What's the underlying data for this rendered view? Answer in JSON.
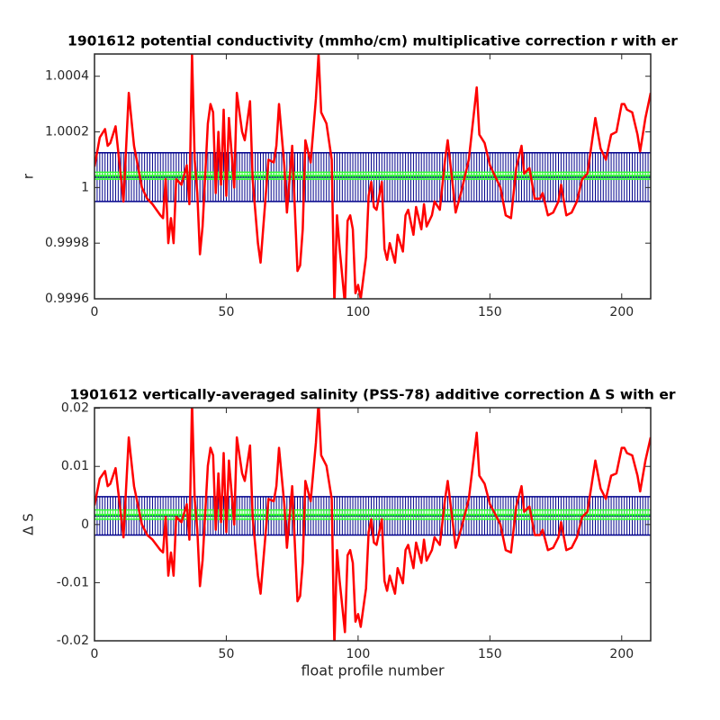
{
  "chart_data": [
    {
      "type": "line",
      "title": "1901612 potential conductivity (mmho/cm) multiplicative correction r with er",
      "ylabel": "r",
      "x": [
        0,
        2,
        4,
        5,
        6,
        8,
        9,
        11,
        13,
        15,
        17,
        18,
        20,
        22,
        25,
        26,
        27,
        28,
        29,
        30,
        31,
        33,
        35,
        36,
        37,
        38,
        39,
        40,
        41,
        43,
        44,
        45,
        46,
        47,
        48,
        49,
        50,
        51,
        53,
        54,
        56,
        57,
        59,
        60,
        62,
        63,
        66,
        68,
        69,
        70,
        72,
        73,
        74,
        75,
        77,
        78,
        79,
        80,
        82,
        84,
        85,
        86,
        88,
        90,
        91,
        92,
        93,
        95,
        96,
        97,
        98,
        99,
        100,
        101,
        103,
        104,
        105,
        106,
        107,
        109,
        110,
        111,
        112,
        114,
        115,
        117,
        118,
        119,
        121,
        122,
        124,
        125,
        126,
        128,
        129,
        131,
        133,
        134,
        136,
        137,
        139,
        141,
        142,
        145,
        146,
        148,
        150,
        152,
        154,
        156,
        158,
        160,
        162,
        163,
        165,
        167,
        169,
        170,
        172,
        174,
        176,
        177,
        179,
        181,
        183,
        185,
        187,
        190,
        192,
        194,
        196,
        198,
        200,
        201,
        202,
        204,
        206,
        207,
        209,
        211
      ],
      "series": [
        {
          "color": "#ff0000",
          "values": [
            1.000075,
            1.00018,
            1.00021,
            1.00015,
            1.00016,
            1.00022,
            1.00013,
            0.99995,
            1.00034,
            1.00015,
            1.00005,
            1,
            0.99996,
            0.99994,
            0.9999,
            0.99989,
            1.00003,
            0.9998,
            0.99989,
            0.9998,
            1.00003,
            1.00001,
            1.00008,
            0.99994,
            1.00048,
            1.0001,
            0.99998,
            0.99976,
            0.99986,
            1.00023,
            1.0003,
            1.00027,
            0.99998,
            1.0002,
            1.00001,
            1.00028,
            0.99997,
            1.00025,
            1,
            1.00034,
            1.0002,
            1.00017,
            1.00031,
            1.00003,
            0.9998,
            0.99973,
            1.0001,
            1.00009,
            1.00015,
            1.0003,
            1.00008,
            0.99991,
            1.00003,
            1.00015,
            0.9997,
            0.99972,
            0.99985,
            1.00017,
            1.00009,
            1.00032,
            1.00048,
            1.00027,
            1.00023,
            1.0001,
            0.99958,
            0.9999,
            0.99978,
            0.99958,
            0.99988,
            0.9999,
            0.99985,
            0.99962,
            0.99965,
            0.9996,
            0.99975,
            0.99997,
            1.00002,
            0.99993,
            0.99992,
            1.00002,
            0.99978,
            0.99974,
            0.9998,
            0.99973,
            0.99983,
            0.99977,
            0.9999,
            0.99992,
            0.99983,
            0.99993,
            0.99985,
            0.99994,
            0.99986,
            0.9999,
            0.99995,
            0.99992,
            1.0001,
            1.00017,
            1,
            0.99991,
            0.99998,
            1.00006,
            1.0001,
            1.00036,
            1.00019,
            1.00016,
            1.00008,
            1.00004,
            1,
            0.9999,
            0.99989,
            1.00007,
            1.00015,
            1.00005,
            1.00007,
            0.99996,
            0.99996,
            0.99998,
            0.9999,
            0.99991,
            0.99995,
            1.00001,
            0.9999,
            0.99991,
            0.99995,
            1.00003,
            1.00005,
            1.00025,
            1.00014,
            1.0001,
            1.00019,
            1.0002,
            1.0003,
            1.0003,
            1.00028,
            1.00027,
            1.00019,
            1.00013,
            1.00025,
            1.00034
          ]
        }
      ],
      "bands": [
        {
          "color": "#00008b",
          "value": 1.0000375,
          "error": 8.75e-05
        },
        {
          "color": "#33ff33",
          "value": 1.0000425,
          "error": 1.25e-05
        }
      ],
      "xlim": [
        0,
        211
      ],
      "xticks": [
        0,
        50,
        100,
        150,
        200
      ],
      "ylim": [
        0.9996,
        1.00048
      ],
      "yticks": [
        0.9996,
        0.9998,
        1,
        1.0002,
        1.0004
      ]
    },
    {
      "type": "line",
      "title": "1901612 vertically-averaged salinity (PSS-78) additive correction Δ S with er",
      "ylabel": "Δ S",
      "xlabel": "float profile number",
      "x": [
        0,
        2,
        4,
        5,
        6,
        8,
        9,
        11,
        13,
        15,
        17,
        18,
        20,
        22,
        25,
        26,
        27,
        28,
        29,
        30,
        31,
        33,
        35,
        36,
        37,
        38,
        39,
        40,
        41,
        43,
        44,
        45,
        46,
        47,
        48,
        49,
        50,
        51,
        53,
        54,
        56,
        57,
        59,
        60,
        62,
        63,
        66,
        68,
        69,
        70,
        72,
        73,
        74,
        75,
        77,
        78,
        79,
        80,
        82,
        84,
        85,
        86,
        88,
        90,
        91,
        92,
        93,
        95,
        96,
        97,
        98,
        99,
        100,
        101,
        103,
        104,
        105,
        106,
        107,
        109,
        110,
        111,
        112,
        114,
        115,
        117,
        118,
        119,
        121,
        122,
        124,
        125,
        126,
        128,
        129,
        131,
        133,
        134,
        136,
        137,
        139,
        141,
        142,
        145,
        146,
        148,
        150,
        152,
        154,
        156,
        158,
        160,
        162,
        163,
        165,
        167,
        169,
        170,
        172,
        174,
        176,
        177,
        179,
        181,
        183,
        185,
        187,
        190,
        192,
        194,
        196,
        198,
        200,
        201,
        202,
        204,
        206,
        207,
        209,
        211
      ],
      "series": [
        {
          "color": "#ff0000",
          "values": [
            0.0033,
            0.0079,
            0.0092,
            0.0066,
            0.007,
            0.0097,
            0.0057,
            -0.0022,
            0.015,
            0.0066,
            0.0022,
            0,
            -0.0018,
            -0.0026,
            -0.0044,
            -0.0048,
            0.0013,
            -0.0088,
            -0.0048,
            -0.0088,
            0.0013,
            0.0004,
            0.0035,
            -0.0026,
            0.0211,
            0.0044,
            -0.0009,
            -0.0106,
            -0.0062,
            0.0101,
            0.0132,
            0.0119,
            -0.0009,
            0.0088,
            0.0004,
            0.0123,
            -0.0013,
            0.011,
            0,
            0.015,
            0.0088,
            0.0075,
            0.0136,
            0.0013,
            -0.0088,
            -0.0119,
            0.0044,
            0.004,
            0.0066,
            0.0132,
            0.0035,
            -0.004,
            0.0013,
            0.0066,
            -0.0132,
            -0.0123,
            -0.0066,
            0.0075,
            0.004,
            0.0141,
            0.0211,
            0.0119,
            0.0101,
            0.0044,
            -0.021,
            -0.0044,
            -0.0097,
            -0.0185,
            -0.0053,
            -0.0044,
            -0.0066,
            -0.0167,
            -0.0154,
            -0.0176,
            -0.011,
            -0.0013,
            0.0009,
            -0.0031,
            -0.0035,
            0.0009,
            -0.0097,
            -0.0114,
            -0.0088,
            -0.0119,
            -0.0075,
            -0.0101,
            -0.0044,
            -0.0035,
            -0.0075,
            -0.0031,
            -0.0066,
            -0.0026,
            -0.0062,
            -0.0044,
            -0.0022,
            -0.0035,
            0.0044,
            0.0075,
            0,
            -0.004,
            -0.0009,
            0.0026,
            0.0044,
            0.0158,
            0.0084,
            0.007,
            0.0035,
            0.0018,
            0,
            -0.0044,
            -0.0048,
            0.0031,
            0.0066,
            0.0022,
            0.0031,
            -0.0018,
            -0.0018,
            -0.0009,
            -0.0044,
            -0.004,
            -0.0022,
            0.0004,
            -0.0044,
            -0.004,
            -0.0022,
            0.0013,
            0.0022,
            0.011,
            0.0062,
            0.0044,
            0.0084,
            0.0088,
            0.0132,
            0.0132,
            0.0123,
            0.0119,
            0.0084,
            0.0057,
            0.011,
            0.015
          ]
        }
      ],
      "bands": [
        {
          "color": "#00008b",
          "value": 0.0015,
          "error": 0.0033
        },
        {
          "color": "#33ff33",
          "value": 0.0017,
          "error": 0.0008
        }
      ],
      "xlim": [
        0,
        211
      ],
      "xticks": [
        0,
        50,
        100,
        150,
        200
      ],
      "ylim": [
        -0.02,
        0.0201
      ],
      "yticks": [
        -0.02,
        -0.01,
        0,
        0.01,
        0.02
      ]
    }
  ]
}
